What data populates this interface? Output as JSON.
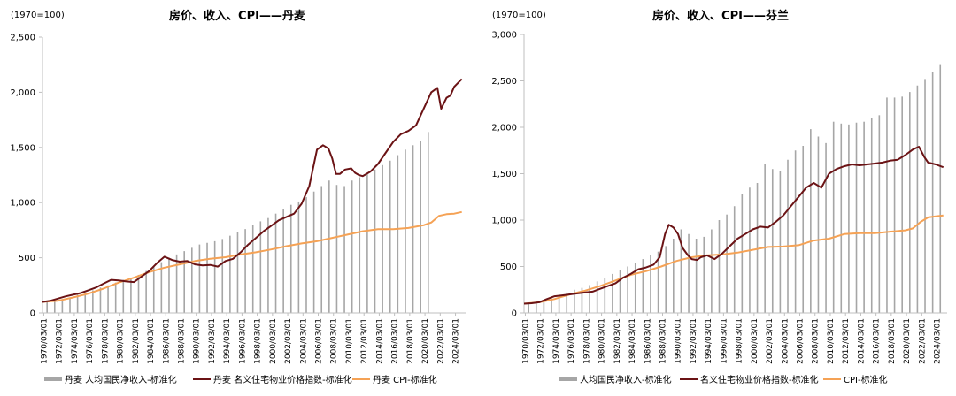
{
  "colors": {
    "income": "#a6a6a6",
    "price": "#6b1315",
    "cpi": "#f5a255",
    "axis": "#bfbfbf"
  },
  "chart_data": [
    {
      "type": "bar",
      "title": "房价、收入、CPI——丹麦",
      "unit_label": "(1970=100)",
      "ylim": [
        0,
        2500
      ],
      "yticks": [
        0,
        500,
        1000,
        1500,
        2000,
        2500
      ],
      "ytick_labels": [
        "0",
        "500",
        "1,000",
        "1,500",
        "2,000",
        "2,500"
      ],
      "x_start": 1970,
      "x_end": 2025.5,
      "xtick_labels": [
        "1970/03/01",
        "1972/03/01",
        "1974/03/01",
        "1976/03/01",
        "1978/03/01",
        "1980/03/01",
        "1982/03/01",
        "1984/03/01",
        "1986/03/01",
        "1988/03/01",
        "1990/03/01",
        "1992/03/01",
        "1994/03/01",
        "1996/03/01",
        "1998/03/01",
        "2000/03/01",
        "2002/03/01",
        "2004/03/01",
        "2006/03/01",
        "2008/03/01",
        "2010/03/01",
        "2012/03/01",
        "2014/03/01",
        "2016/03/01",
        "2018/03/01",
        "2020/03/01",
        "2022/03/01",
        "2024/03/01"
      ],
      "legend": [
        "丹麦 人均国民净收入-标准化",
        "丹麦 名义住宅物业价格指数-标准化",
        "丹麦 CPI-标准化"
      ],
      "series": [
        {
          "name": "丹麦 人均国民净收入-标准化",
          "type": "bar",
          "x": [
            1970,
            1971,
            1972,
            1973,
            1974,
            1975,
            1976,
            1977,
            1978,
            1979,
            1980,
            1981,
            1982,
            1983,
            1984,
            1985,
            1986,
            1987,
            1988,
            1989,
            1990,
            1991,
            1992,
            1993,
            1994,
            1995,
            1996,
            1997,
            1998,
            1999,
            2000,
            2001,
            2002,
            2003,
            2004,
            2005,
            2006,
            2007,
            2008,
            2009,
            2010,
            2011,
            2012,
            2013,
            2014,
            2015,
            2016,
            2017,
            2018,
            2019,
            2020
          ],
          "values": [
            100,
            110,
            125,
            140,
            165,
            185,
            205,
            230,
            250,
            275,
            300,
            320,
            345,
            380,
            420,
            460,
            500,
            530,
            560,
            590,
            620,
            635,
            650,
            670,
            700,
            730,
            760,
            800,
            830,
            860,
            900,
            940,
            980,
            1010,
            1050,
            1100,
            1150,
            1200,
            1160,
            1150,
            1200,
            1230,
            1260,
            1300,
            1340,
            1380,
            1430,
            1480,
            1520,
            1560,
            1640
          ]
        },
        {
          "name": "丹麦 名义住宅物业价格指数-标准化",
          "type": "line",
          "points": [
            [
              1970,
              100
            ],
            [
              1971,
              110
            ],
            [
              1972,
              130
            ],
            [
              1973,
              150
            ],
            [
              1974,
              165
            ],
            [
              1975,
              180
            ],
            [
              1976,
              205
            ],
            [
              1977,
              230
            ],
            [
              1978,
              265
            ],
            [
              1979,
              300
            ],
            [
              1980,
              295
            ],
            [
              1981,
              285
            ],
            [
              1982,
              280
            ],
            [
              1983,
              330
            ],
            [
              1984,
              380
            ],
            [
              1985,
              450
            ],
            [
              1986,
              510
            ],
            [
              1987,
              480
            ],
            [
              1988,
              465
            ],
            [
              1989,
              470
            ],
            [
              1990,
              440
            ],
            [
              1991,
              430
            ],
            [
              1992,
              435
            ],
            [
              1993,
              420
            ],
            [
              1994,
              470
            ],
            [
              1995,
              490
            ],
            [
              1996,
              550
            ],
            [
              1997,
              620
            ],
            [
              1998,
              680
            ],
            [
              1999,
              740
            ],
            [
              2000,
              790
            ],
            [
              2001,
              840
            ],
            [
              2002,
              870
            ],
            [
              2003,
              900
            ],
            [
              2004,
              990
            ],
            [
              2005,
              1150
            ],
            [
              2006,
              1480
            ],
            [
              2006.8,
              1520
            ],
            [
              2007.5,
              1490
            ],
            [
              2008,
              1400
            ],
            [
              2008.5,
              1260
            ],
            [
              2009,
              1260
            ],
            [
              2009.7,
              1300
            ],
            [
              2010.5,
              1310
            ],
            [
              2011,
              1270
            ],
            [
              2011.5,
              1250
            ],
            [
              2012,
              1240
            ],
            [
              2013,
              1280
            ],
            [
              2014,
              1350
            ],
            [
              2015,
              1450
            ],
            [
              2016,
              1550
            ],
            [
              2017,
              1620
            ],
            [
              2018,
              1650
            ],
            [
              2019,
              1700
            ],
            [
              2020,
              1850
            ],
            [
              2021,
              2000
            ],
            [
              2021.8,
              2040
            ],
            [
              2022.3,
              1850
            ],
            [
              2023,
              1950
            ],
            [
              2023.5,
              1970
            ],
            [
              2024,
              2050
            ],
            [
              2025,
              2120
            ]
          ]
        },
        {
          "name": "丹麦 CPI-标准化",
          "type": "line",
          "points": [
            [
              1970,
              100
            ],
            [
              1972,
              110
            ],
            [
              1974,
              140
            ],
            [
              1976,
              175
            ],
            [
              1978,
              220
            ],
            [
              1980,
              275
            ],
            [
              1982,
              320
            ],
            [
              1984,
              370
            ],
            [
              1986,
              410
            ],
            [
              1988,
              440
            ],
            [
              1990,
              470
            ],
            [
              1992,
              490
            ],
            [
              1994,
              505
            ],
            [
              1996,
              530
            ],
            [
              1998,
              550
            ],
            [
              2000,
              575
            ],
            [
              2002,
              605
            ],
            [
              2004,
              630
            ],
            [
              2006,
              650
            ],
            [
              2008,
              680
            ],
            [
              2010,
              710
            ],
            [
              2012,
              740
            ],
            [
              2014,
              760
            ],
            [
              2016,
              760
            ],
            [
              2018,
              770
            ],
            [
              2020,
              795
            ],
            [
              2021,
              820
            ],
            [
              2022,
              880
            ],
            [
              2023,
              895
            ],
            [
              2024,
              900
            ],
            [
              2025,
              915
            ]
          ]
        }
      ]
    },
    {
      "type": "bar",
      "title": "房价、收入、CPI——芬兰",
      "unit_label": "(1970=100)",
      "ylim": [
        0,
        3000
      ],
      "yticks": [
        0,
        500,
        1000,
        1500,
        2000,
        2500,
        3000
      ],
      "ytick_labels": [
        "0",
        "500",
        "1,000",
        "1,500",
        "2,000",
        "2,500",
        "3,000"
      ],
      "x_start": 1970,
      "x_end": 2025.5,
      "xtick_labels": [
        "1970/03/01",
        "1972/03/01",
        "1974/03/01",
        "1976/03/01",
        "1978/03/01",
        "1980/03/01",
        "1982/03/01",
        "1984/03/01",
        "1986/03/01",
        "1988/03/01",
        "1990/03/01",
        "1992/03/01",
        "1994/03/01",
        "1996/03/01",
        "1998/03/01",
        "2000/03/01",
        "2002/03/01",
        "2004/03/01",
        "2006/03/01",
        "2008/03/01",
        "2010/03/01",
        "2012/03/01",
        "2014/03/01",
        "2016/03/01",
        "2018/03/01",
        "2020/03/01",
        "2022/03/01",
        "2024/03/01"
      ],
      "legend": [
        "人均国民净收入-标准化",
        "名义住宅物业价格指数-标准化",
        "CPI-标准化"
      ],
      "series": [
        {
          "name": "人均国民净收入-标准化",
          "type": "bar",
          "x": [
            1970,
            1971,
            1972,
            1973,
            1974,
            1975,
            1976,
            1977,
            1978,
            1979,
            1980,
            1981,
            1982,
            1983,
            1984,
            1985,
            1986,
            1987,
            1988,
            1989,
            1990,
            1991,
            1992,
            1993,
            1994,
            1995,
            1996,
            1997,
            1998,
            1999,
            2000,
            2001,
            2002,
            2003,
            2004,
            2005,
            2006,
            2007,
            2008,
            2009,
            2010,
            2011,
            2012,
            2013,
            2014,
            2015,
            2016,
            2017,
            2018,
            2019,
            2020,
            2021,
            2022,
            2023,
            2024
          ],
          "values": [
            100,
            115,
            130,
            160,
            190,
            220,
            250,
            270,
            300,
            340,
            380,
            420,
            460,
            500,
            540,
            580,
            620,
            660,
            720,
            800,
            900,
            850,
            800,
            820,
            900,
            1000,
            1060,
            1150,
            1280,
            1350,
            1400,
            1600,
            1550,
            1530,
            1650,
            1750,
            1800,
            1980,
            1900,
            1830,
            2060,
            2040,
            2030,
            2050,
            2060,
            2100,
            2130,
            2320,
            2320,
            2330,
            2380,
            2450,
            2520,
            2600,
            2680
          ]
        },
        {
          "name": "名义住宅物业价格指数-标准化",
          "type": "line",
          "points": [
            [
              1970,
              100
            ],
            [
              1971,
              105
            ],
            [
              1972,
              115
            ],
            [
              1973,
              150
            ],
            [
              1974,
              180
            ],
            [
              1975,
              190
            ],
            [
              1976,
              200
            ],
            [
              1977,
              210
            ],
            [
              1978,
              220
            ],
            [
              1979,
              230
            ],
            [
              1980,
              260
            ],
            [
              1981,
              290
            ],
            [
              1982,
              320
            ],
            [
              1983,
              380
            ],
            [
              1984,
              420
            ],
            [
              1985,
              470
            ],
            [
              1986,
              490
            ],
            [
              1987,
              520
            ],
            [
              1987.8,
              600
            ],
            [
              1988.5,
              850
            ],
            [
              1989,
              950
            ],
            [
              1989.6,
              920
            ],
            [
              1990.2,
              850
            ],
            [
              1990.8,
              700
            ],
            [
              1991.5,
              620
            ],
            [
              1992,
              580
            ],
            [
              1992.7,
              570
            ],
            [
              1993.2,
              600
            ],
            [
              1994,
              620
            ],
            [
              1995,
              580
            ],
            [
              1996,
              640
            ],
            [
              1997,
              720
            ],
            [
              1998,
              800
            ],
            [
              1999,
              850
            ],
            [
              2000,
              900
            ],
            [
              2001,
              930
            ],
            [
              2002,
              920
            ],
            [
              2003,
              980
            ],
            [
              2004,
              1050
            ],
            [
              2005,
              1150
            ],
            [
              2006,
              1250
            ],
            [
              2007,
              1350
            ],
            [
              2008,
              1400
            ],
            [
              2009,
              1350
            ],
            [
              2010,
              1500
            ],
            [
              2011,
              1550
            ],
            [
              2012,
              1580
            ],
            [
              2013,
              1600
            ],
            [
              2014,
              1590
            ],
            [
              2015,
              1600
            ],
            [
              2016,
              1610
            ],
            [
              2017,
              1620
            ],
            [
              2018,
              1640
            ],
            [
              2019,
              1650
            ],
            [
              2020,
              1700
            ],
            [
              2021,
              1760
            ],
            [
              2021.8,
              1790
            ],
            [
              2022.5,
              1680
            ],
            [
              2023,
              1620
            ],
            [
              2024,
              1600
            ],
            [
              2025,
              1570
            ]
          ]
        },
        {
          "name": "CPI-标准化",
          "type": "line",
          "points": [
            [
              1970,
              100
            ],
            [
              1972,
              115
            ],
            [
              1974,
              150
            ],
            [
              1976,
              200
            ],
            [
              1978,
              240
            ],
            [
              1980,
              290
            ],
            [
              1982,
              350
            ],
            [
              1984,
              410
            ],
            [
              1986,
              450
            ],
            [
              1988,
              500
            ],
            [
              1990,
              560
            ],
            [
              1992,
              600
            ],
            [
              1994,
              620
            ],
            [
              1996,
              630
            ],
            [
              1998,
              650
            ],
            [
              2000,
              680
            ],
            [
              2002,
              710
            ],
            [
              2004,
              715
            ],
            [
              2006,
              730
            ],
            [
              2008,
              780
            ],
            [
              2010,
              800
            ],
            [
              2012,
              850
            ],
            [
              2014,
              860
            ],
            [
              2016,
              860
            ],
            [
              2018,
              875
            ],
            [
              2020,
              890
            ],
            [
              2021,
              910
            ],
            [
              2022,
              980
            ],
            [
              2023,
              1030
            ],
            [
              2024,
              1040
            ],
            [
              2025,
              1050
            ]
          ]
        }
      ]
    }
  ]
}
